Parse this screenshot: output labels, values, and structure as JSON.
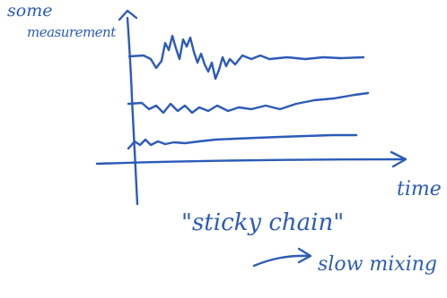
{
  "labels": {
    "y_axis_line1": "some",
    "y_axis_line2": "measurement",
    "x_axis": "time",
    "caption": "\"sticky chain\"",
    "note": "slow mixing"
  },
  "ink_color": "#2c5bb8"
}
